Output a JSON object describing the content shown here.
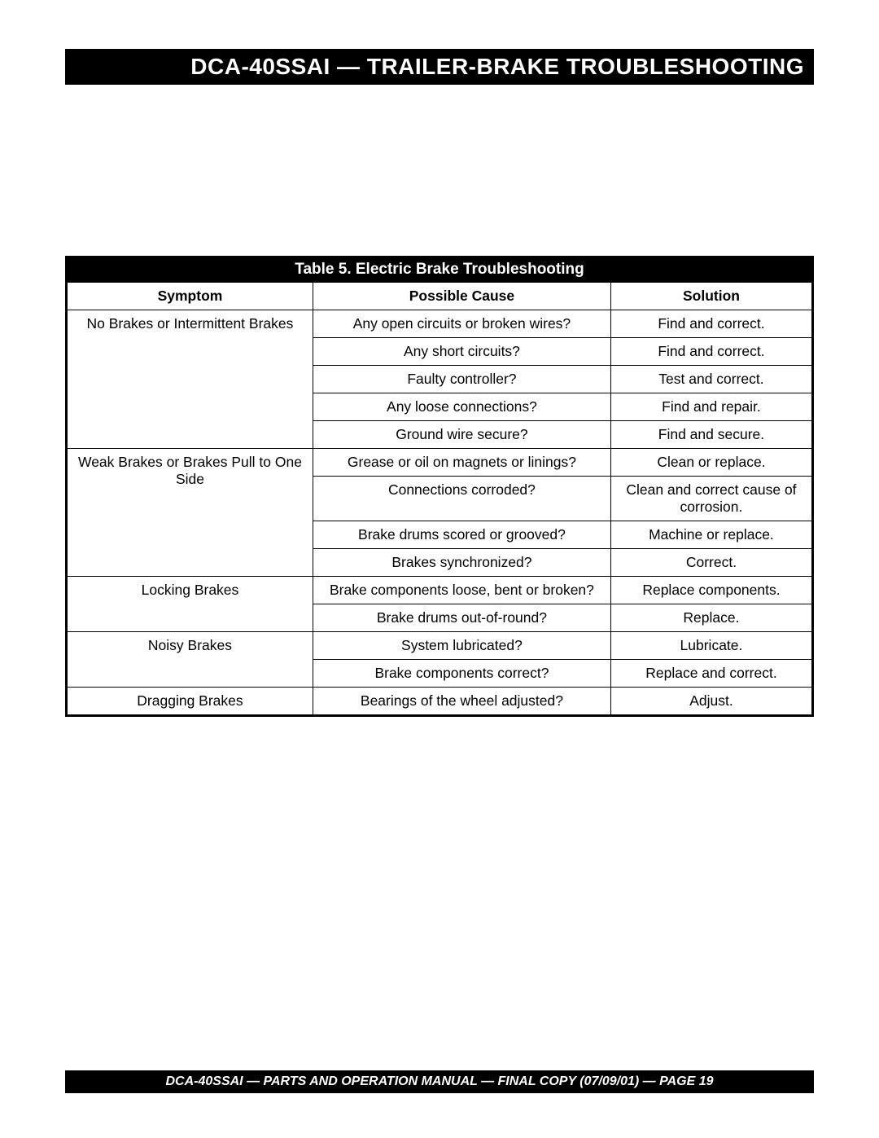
{
  "header_title": "DCA-40SSAI  — TRAILER-BRAKE TROUBLESHOOTING",
  "footer_text": "DCA-40SSAI — PARTS AND OPERATION MANUAL — FINAL COPY (07/09/01) — PAGE 19",
  "table": {
    "title": "Table 5. Electric Brake Troubleshooting",
    "columns": [
      "Symptom",
      "Possible Cause",
      "Solution"
    ],
    "groups": [
      {
        "symptom": "No Brakes or Intermittent Brakes",
        "rows": [
          {
            "cause": "Any open circuits or broken wires?",
            "solution": "Find and correct."
          },
          {
            "cause": "Any short circuits?",
            "solution": "Find and correct."
          },
          {
            "cause": "Faulty controller?",
            "solution": "Test and correct."
          },
          {
            "cause": "Any loose connections?",
            "solution": "Find and repair."
          },
          {
            "cause": "Ground wire secure?",
            "solution": "Find and secure."
          }
        ]
      },
      {
        "symptom": "Weak Brakes or Brakes Pull to One Side",
        "rows": [
          {
            "cause": "Grease or oil on magnets or linings?",
            "solution": "Clean or replace."
          },
          {
            "cause": "Connections corroded?",
            "solution": "Clean and correct cause of corrosion."
          },
          {
            "cause": "Brake drums scored or grooved?",
            "solution": "Machine or replace."
          },
          {
            "cause": "Brakes synchronized?",
            "solution": "Correct."
          }
        ]
      },
      {
        "symptom": "Locking Brakes",
        "rows": [
          {
            "cause": "Brake components loose, bent or broken?",
            "solution": "Replace components."
          },
          {
            "cause": "Brake drums out-of-round?",
            "solution": "Replace."
          }
        ]
      },
      {
        "symptom": "Noisy Brakes",
        "rows": [
          {
            "cause": "System lubricated?",
            "solution": "Lubricate."
          },
          {
            "cause": "Brake components correct?",
            "solution": "Replace and correct."
          }
        ]
      },
      {
        "symptom": "Dragging Brakes",
        "rows": [
          {
            "cause": "Bearings of the wheel adjusted?",
            "solution": "Adjust."
          }
        ]
      }
    ]
  },
  "style": {
    "page_bg": "#ffffff",
    "bar_bg": "#000000",
    "bar_fg": "#ffffff",
    "border": "#000000",
    "header_font_size": 28,
    "title_font_size": 19,
    "cell_font_size": 17.5,
    "footer_font_size": 16
  }
}
